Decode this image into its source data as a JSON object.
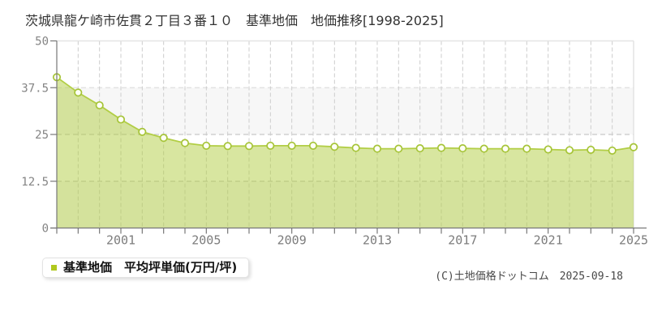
{
  "page": {
    "title": "茨城県龍ケ崎市佐貫２丁目３番１０　基準地価　地価推移[1998-2025]",
    "copyright": "(C)土地価格ドットコム　2025-09-18"
  },
  "legend": {
    "label": "基準地価　平均坪単価(万円/坪)",
    "swatch_color": "#b0c81e"
  },
  "chart_data": {
    "type": "area",
    "title": "茨城県龍ケ崎市佐貫２丁目３番１０ 基準地価 地価推移[1998-2025]",
    "x": [
      1998,
      1999,
      2000,
      2001,
      2002,
      2003,
      2004,
      2005,
      2006,
      2007,
      2008,
      2009,
      2010,
      2011,
      2012,
      2013,
      2014,
      2015,
      2016,
      2017,
      2018,
      2019,
      2020,
      2021,
      2022,
      2023,
      2024,
      2025
    ],
    "series": [
      {
        "name": "基準地価 平均坪単価(万円/坪)",
        "values": [
          40.3,
          36.2,
          32.8,
          29.0,
          25.7,
          24.1,
          22.7,
          22.0,
          21.9,
          21.9,
          22.0,
          22.0,
          22.0,
          21.7,
          21.4,
          21.2,
          21.2,
          21.3,
          21.4,
          21.3,
          21.2,
          21.2,
          21.2,
          21.0,
          20.8,
          20.9,
          20.7,
          21.6
        ]
      }
    ],
    "xlabel": "",
    "ylabel": "",
    "ylim": [
      0,
      50
    ],
    "yticks": [
      0,
      12.5,
      25,
      37.5,
      50
    ],
    "ytick_labels": [
      "0",
      "12.5",
      "25",
      "37.5",
      "50"
    ],
    "xtick_labeled_years": [
      2001,
      2005,
      2009,
      2013,
      2017,
      2021,
      2025
    ],
    "grid": true,
    "legend_position": "bottom-left",
    "colors": {
      "line": "#b2ce45",
      "fill": "rgba(177,205,65,0.5)",
      "marker_fill": "#fefff5",
      "marker_stroke": "#a6c438",
      "grid": "#c8c8c8",
      "grid_light": "#e0e0e0",
      "band": "#f7f7f7",
      "border": "#e4e4e4",
      "axis": "#777777",
      "tick_text": "#848484"
    }
  }
}
